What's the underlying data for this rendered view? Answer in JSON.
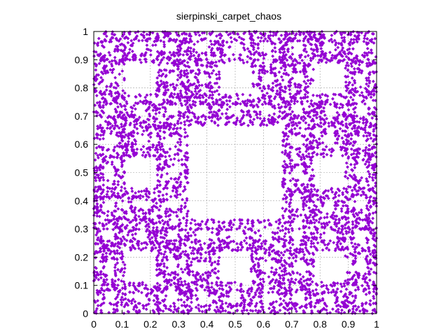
{
  "chart_data": {
    "type": "scatter",
    "title": "sierpinski_carpet_chaos",
    "xlabel": "",
    "ylabel": "",
    "xlim": [
      0,
      1
    ],
    "ylim": [
      0,
      1
    ],
    "x_ticks": [
      "0",
      "0.1",
      "0.2",
      "0.3",
      "0.4",
      "0.5",
      "0.6",
      "0.7",
      "0.8",
      "0.9",
      "1"
    ],
    "y_ticks": [
      "0",
      "0.1",
      "0.2",
      "0.3",
      "0.4",
      "0.5",
      "0.6",
      "0.7",
      "0.8",
      "0.9",
      "1"
    ],
    "grid": true,
    "marker": "diamond",
    "series": [
      {
        "color": "#9400d3",
        "point_count": 6000
      }
    ]
  }
}
